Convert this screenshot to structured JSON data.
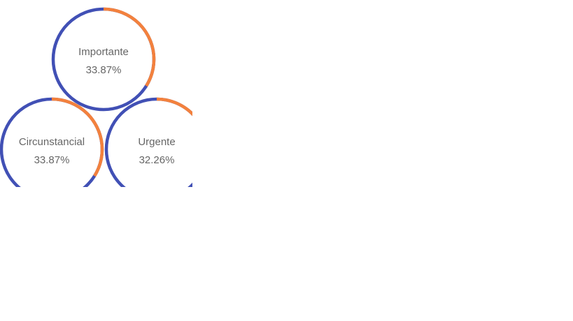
{
  "colors": {
    "track": "#4150b5",
    "highlight": "#f3813d",
    "label_text": "#666666",
    "background": "#ffffff"
  },
  "chart_data": {
    "type": "donut-rings",
    "title": "",
    "categories": [
      "Importante",
      "Circunstancial",
      "Urgente"
    ],
    "values": [
      33.87,
      33.87,
      32.26
    ],
    "value_labels": [
      "33.87%",
      "33.87%",
      "32.26%"
    ],
    "unit": "%"
  }
}
